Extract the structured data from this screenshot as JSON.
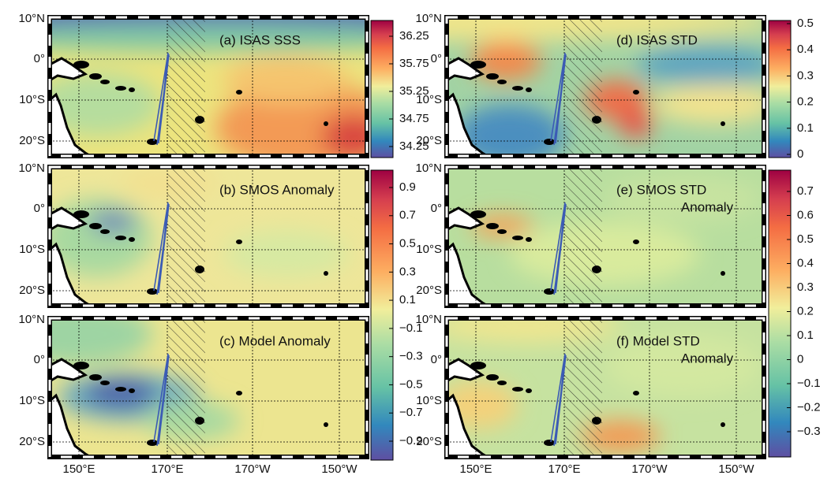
{
  "panels": [
    {
      "lines": [
        "(a) ISAS SSS"
      ]
    },
    {
      "lines": [
        "(b) SMOS Anomaly"
      ]
    },
    {
      "lines": [
        "(c) Model Anomaly"
      ]
    },
    {
      "lines": [
        "(d) ISAS STD"
      ]
    },
    {
      "lines": [
        "(e) SMOS STD",
        "Anomaly"
      ]
    },
    {
      "lines": [
        "(f) Model STD",
        "Anomaly"
      ]
    }
  ],
  "lat_labels": [
    "10°N",
    "0°",
    "10°S",
    "20°S"
  ],
  "lon_labels": [
    "150°E",
    "170°E",
    "170°W",
    "150°W"
  ],
  "colorbars": [
    {
      "ticks": [
        "36.25",
        "35.75",
        "35.25",
        "34.75",
        "34.25"
      ]
    },
    {
      "ticks": [
        "0.9",
        "0.7",
        "0.5",
        "0.3",
        "0.1",
        "−0.1",
        "−0.3",
        "−0.5",
        "−0.7",
        "−0.9"
      ]
    },
    {
      "ticks": [
        "0.5",
        "0.4",
        "0.3",
        "0.2",
        "0.1",
        "0"
      ]
    },
    {
      "ticks": [
        "0.7",
        "0.6",
        "0.5",
        "0.4",
        "0.3",
        "0.2",
        "0.1",
        "0",
        "−0.1",
        "−0.2",
        "−0.3"
      ]
    }
  ]
}
